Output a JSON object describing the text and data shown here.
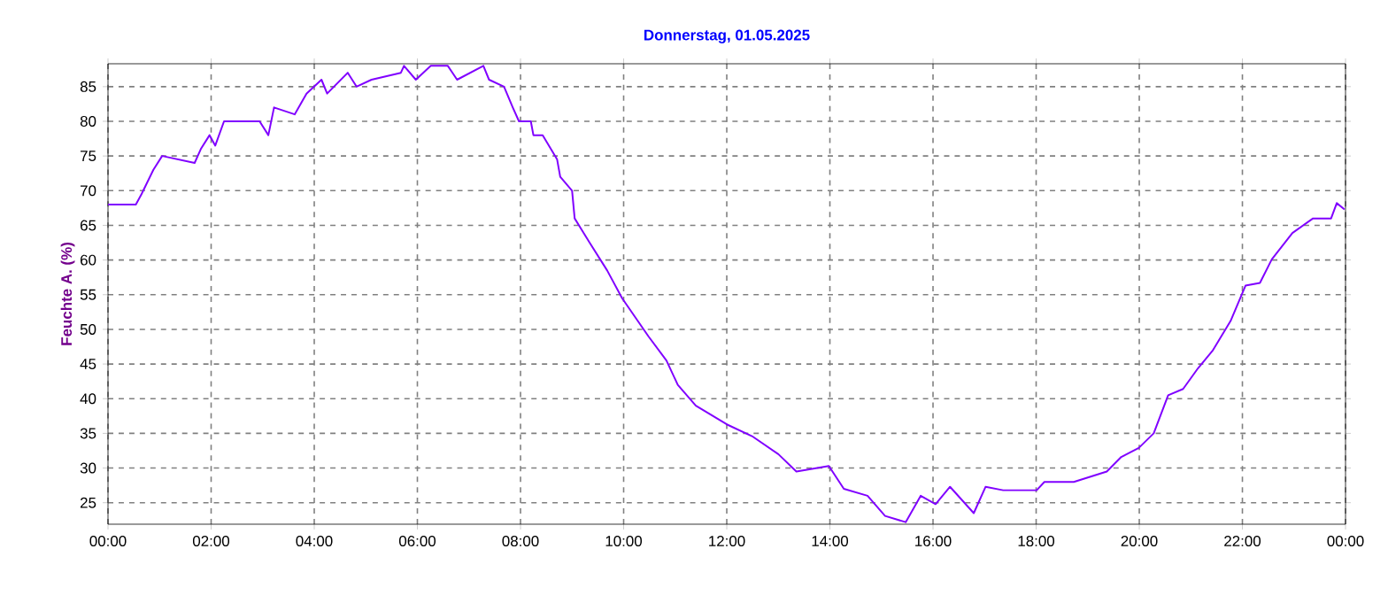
{
  "chart_data": {
    "type": "line",
    "title": "Donnerstag, 01.05.2025",
    "ylabel": "Feuchte A.  (%)",
    "xlim": [
      0,
      24
    ],
    "ylim": [
      21.9,
      88.3
    ],
    "xticks": [
      {
        "value": 0,
        "label": "00:00"
      },
      {
        "value": 2,
        "label": "02:00"
      },
      {
        "value": 4,
        "label": "04:00"
      },
      {
        "value": 6,
        "label": "06:00"
      },
      {
        "value": 8,
        "label": "08:00"
      },
      {
        "value": 10,
        "label": "10:00"
      },
      {
        "value": 12,
        "label": "12:00"
      },
      {
        "value": 14,
        "label": "14:00"
      },
      {
        "value": 16,
        "label": "16:00"
      },
      {
        "value": 18,
        "label": "18:00"
      },
      {
        "value": 20,
        "label": "20:00"
      },
      {
        "value": 22,
        "label": "22:00"
      },
      {
        "value": 24,
        "label": "00:00"
      }
    ],
    "yticks": [
      25,
      30,
      35,
      40,
      45,
      50,
      55,
      60,
      65,
      70,
      75,
      80,
      85
    ],
    "grid": true,
    "line_style": "solid",
    "series": [
      {
        "color": "#8000ff",
        "x": [
          0,
          0.54,
          0.65,
          0.88,
          1.05,
          1.68,
          1.8,
          1.97,
          2.08,
          2.25,
          2.94,
          3.11,
          3.22,
          3.62,
          3.85,
          4.14,
          4.25,
          4.65,
          4.82,
          5.11,
          5.68,
          5.74,
          5.97,
          6.26,
          6.59,
          6.77,
          7.28,
          7.39,
          7.68,
          7.85,
          7.97,
          8.2,
          8.25,
          8.43,
          8.71,
          8.77,
          9.0,
          9.05,
          9.34,
          9.68,
          9.97,
          10.48,
          10.83,
          11.05,
          11.4,
          12.0,
          12.49,
          13.0,
          13.35,
          13.98,
          14.27,
          14.73,
          15.07,
          15.47,
          15.76,
          16.05,
          16.33,
          16.79,
          17.02,
          17.36,
          18.01,
          18.16,
          18.73,
          19.37,
          19.65,
          19.99,
          20.28,
          20.56,
          20.85,
          21.14,
          21.42,
          21.77,
          22.06,
          22.34,
          22.57,
          22.97,
          23.37,
          23.72,
          23.83,
          23.98
        ],
        "values": [
          68,
          68,
          69.5,
          73,
          75,
          74,
          76,
          78,
          76.5,
          80,
          80,
          78,
          82,
          81,
          84,
          86,
          84,
          87,
          85,
          86,
          87,
          88,
          86,
          88,
          88,
          86,
          88,
          86,
          85,
          82,
          80,
          80,
          78,
          78,
          74.5,
          72,
          70,
          66,
          62.5,
          58.5,
          54.5,
          49,
          45.5,
          42,
          39,
          36.3,
          34.6,
          32,
          29.5,
          30.3,
          27,
          26,
          23.1,
          22.2,
          26,
          24.8,
          27.3,
          23.5,
          27.3,
          26.8,
          26.8,
          28,
          28,
          29.5,
          31.6,
          32.9,
          35,
          40.5,
          41.4,
          44.4,
          46.9,
          51.2,
          56.3,
          56.7,
          60.1,
          63.9,
          66,
          66,
          68.2,
          67.3
        ]
      }
    ]
  }
}
